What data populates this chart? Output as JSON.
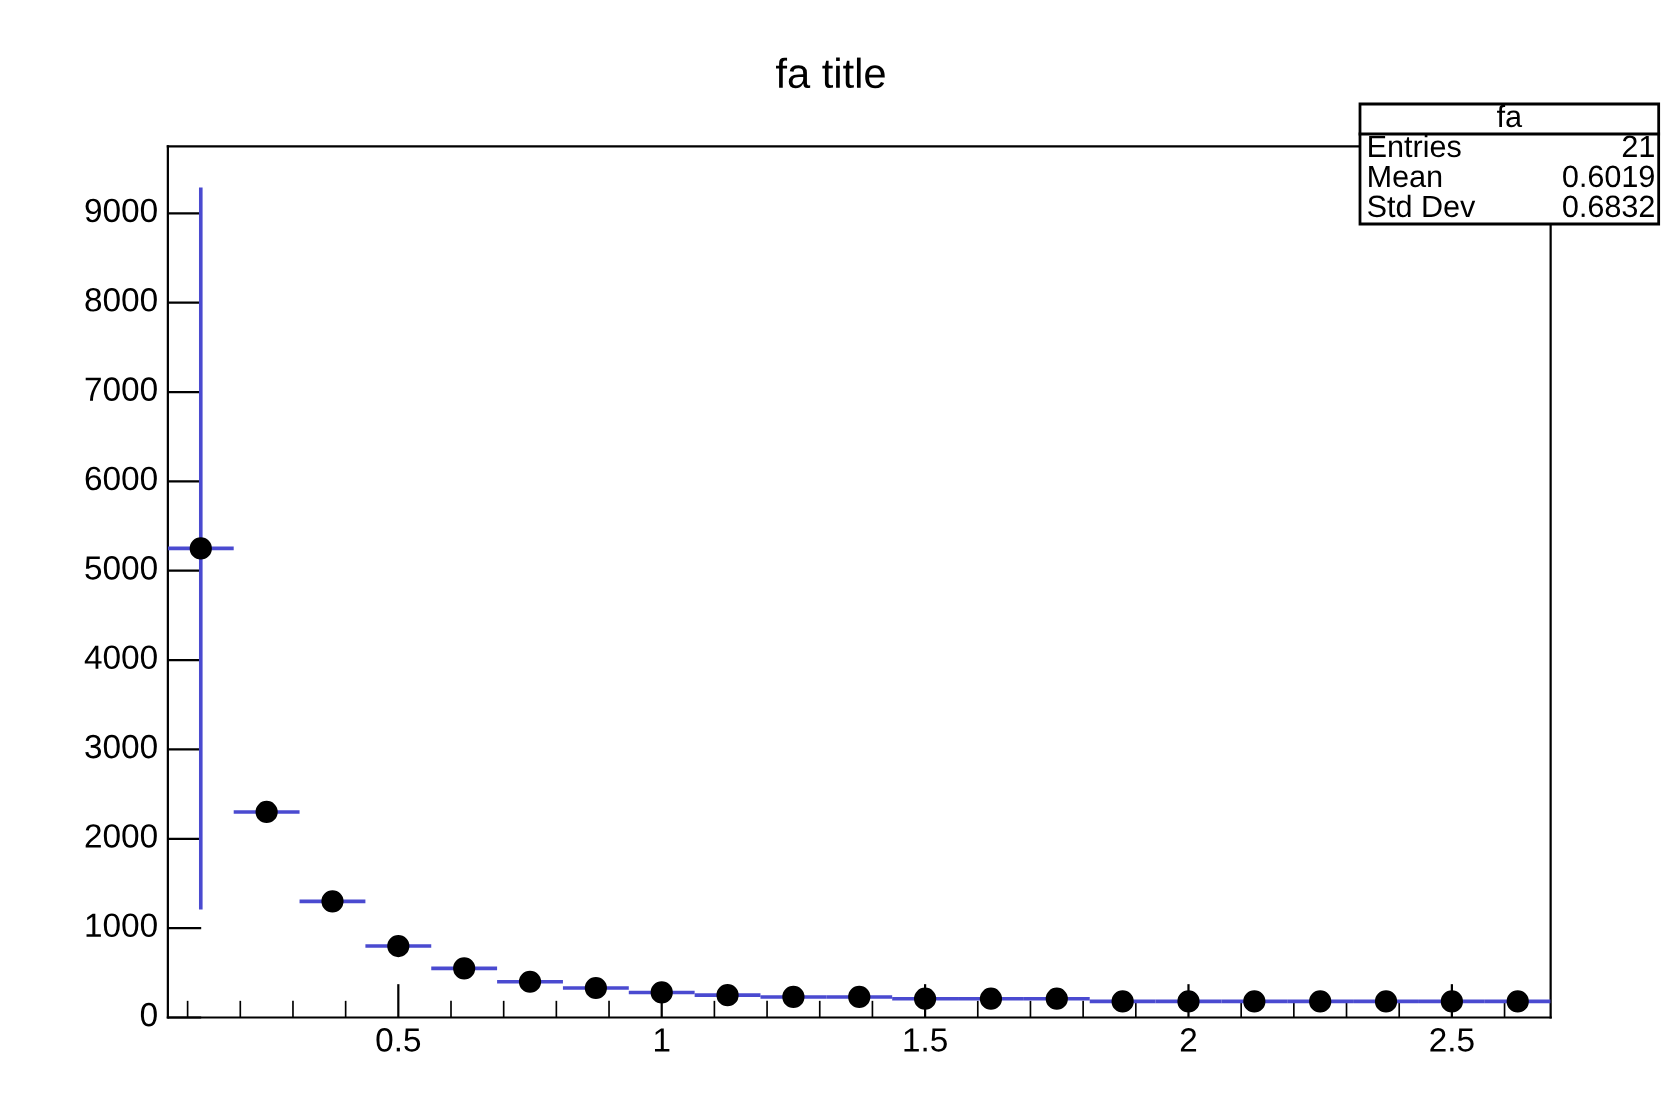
{
  "chart_data": {
    "type": "scatter",
    "title": "fa title",
    "x": [
      0.125,
      0.25,
      0.375,
      0.5,
      0.625,
      0.75,
      0.875,
      1.0,
      1.125,
      1.25,
      1.375,
      1.5,
      1.625,
      1.75,
      1.875,
      2.0,
      2.125,
      2.25,
      2.375,
      2.5,
      2.625
    ],
    "values": [
      5250,
      2300,
      1300,
      800,
      550,
      400,
      330,
      280,
      250,
      230,
      230,
      210,
      210,
      210,
      180,
      180,
      180,
      180,
      180,
      180,
      180
    ],
    "errors": [
      4040,
      null,
      null,
      null,
      null,
      null,
      null,
      null,
      null,
      null,
      null,
      null,
      null,
      null,
      null,
      null,
      null,
      null,
      null,
      null,
      null
    ],
    "xerrors": [
      0.0625,
      0.0625,
      0.0625,
      0.0625,
      0.0625,
      0.0625,
      0.0625,
      0.0625,
      0.0625,
      0.0625,
      0.0625,
      0.0625,
      0.0625,
      0.0625,
      0.0625,
      0.0625,
      0.0625,
      0.0625,
      0.0625,
      0.0625,
      0.0625
    ],
    "color": "#000000",
    "marker": "circle",
    "xlim": [
      0.0625,
      2.6875
    ],
    "xticks": [
      0.5,
      1,
      1.5,
      2,
      2.5
    ],
    "ylim": [
      0,
      9750
    ],
    "yticks": [
      0,
      1000,
      2000,
      3000,
      4000,
      5000,
      6000,
      7000,
      8000,
      9000
    ],
    "annotations": [
      "fa",
      "Entries",
      "21",
      "Mean",
      "0.6019",
      "Std Dev",
      "0.6832"
    ]
  }
}
